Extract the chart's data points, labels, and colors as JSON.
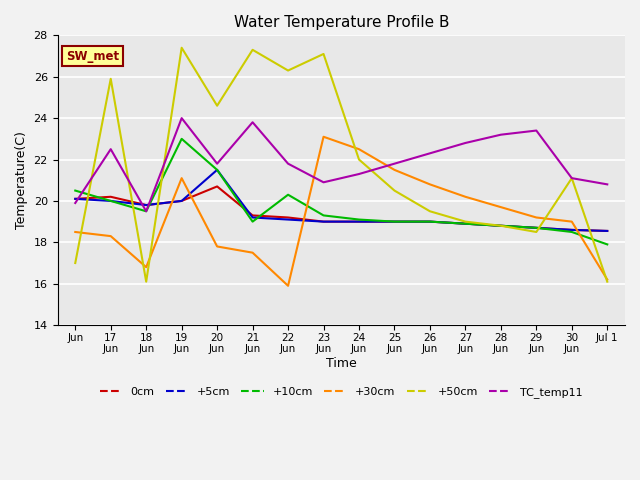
{
  "title": "Water Temperature Profile B",
  "xlabel": "Time",
  "ylabel": "Temperature(C)",
  "ylim": [
    14,
    28
  ],
  "yticks": [
    14,
    16,
    18,
    20,
    22,
    24,
    26,
    28
  ],
  "annotation": "SW_met",
  "series": {
    "0cm": {
      "color": "#cc0000",
      "x": [
        0,
        1,
        2,
        3,
        4,
        5,
        6,
        7,
        8,
        9,
        10,
        11,
        12,
        13,
        14,
        15
      ],
      "values": [
        20.1,
        20.2,
        19.8,
        20.0,
        20.7,
        19.3,
        19.2,
        19.0,
        19.0,
        19.0,
        19.0,
        18.9,
        18.8,
        18.7,
        18.6,
        18.55
      ]
    },
    "+5cm": {
      "color": "#0000cc",
      "x": [
        0,
        1,
        2,
        3,
        4,
        5,
        6,
        7,
        8,
        9,
        10,
        11,
        12,
        13,
        14,
        15
      ],
      "values": [
        20.1,
        20.0,
        19.8,
        20.0,
        21.5,
        19.2,
        19.1,
        19.0,
        19.0,
        19.0,
        19.0,
        18.9,
        18.8,
        18.7,
        18.6,
        18.55
      ]
    },
    "+10cm": {
      "color": "#00bb00",
      "x": [
        0,
        1,
        2,
        3,
        4,
        5,
        6,
        7,
        8,
        9,
        10,
        11,
        12,
        13,
        14,
        15
      ],
      "values": [
        20.5,
        20.0,
        19.5,
        23.0,
        21.5,
        19.0,
        20.3,
        19.3,
        19.1,
        19.0,
        19.0,
        18.9,
        18.8,
        18.7,
        18.5,
        17.9
      ]
    },
    "+30cm": {
      "color": "#ff8800",
      "x": [
        0,
        1,
        2,
        3,
        4,
        5,
        6,
        7,
        8,
        9,
        10,
        11,
        12,
        13,
        14,
        15
      ],
      "values": [
        18.5,
        18.3,
        16.8,
        21.1,
        17.8,
        17.5,
        15.9,
        23.1,
        22.5,
        21.5,
        20.8,
        20.2,
        19.7,
        19.2,
        19.0,
        16.2
      ]
    },
    "+50cm": {
      "color": "#cccc00",
      "x": [
        0,
        1,
        2,
        3,
        4,
        5,
        6,
        7,
        8,
        9,
        10,
        11,
        12,
        13,
        14,
        15
      ],
      "values": [
        17.0,
        25.9,
        16.1,
        27.4,
        24.6,
        27.3,
        26.3,
        27.1,
        22.0,
        20.5,
        19.5,
        19.0,
        18.8,
        18.5,
        21.1,
        16.1
      ]
    },
    "TC_temp11": {
      "color": "#aa00aa",
      "x": [
        0,
        1,
        2,
        3,
        4,
        5,
        6,
        7,
        8,
        9,
        10,
        11,
        12,
        13,
        14,
        15
      ],
      "values": [
        19.9,
        22.5,
        19.5,
        24.0,
        21.8,
        23.8,
        21.8,
        20.9,
        21.3,
        21.8,
        22.3,
        22.8,
        23.2,
        23.4,
        21.1,
        20.8
      ]
    }
  },
  "xtick_labels": [
    "Jun",
    "17\nJun",
    "18\nJun",
    "19\nJun",
    "20\nJun",
    "21\nJun",
    "22\nJun",
    "23\nJun",
    "24\nJun",
    "25\nJun",
    "26\nJun",
    "27\nJun",
    "28\nJun",
    "29\nJun",
    "30\nJun",
    " Jul 1"
  ],
  "legend_order": [
    "0cm",
    "+5cm",
    "+10cm",
    "+30cm",
    "+50cm",
    "TC_temp11"
  ]
}
